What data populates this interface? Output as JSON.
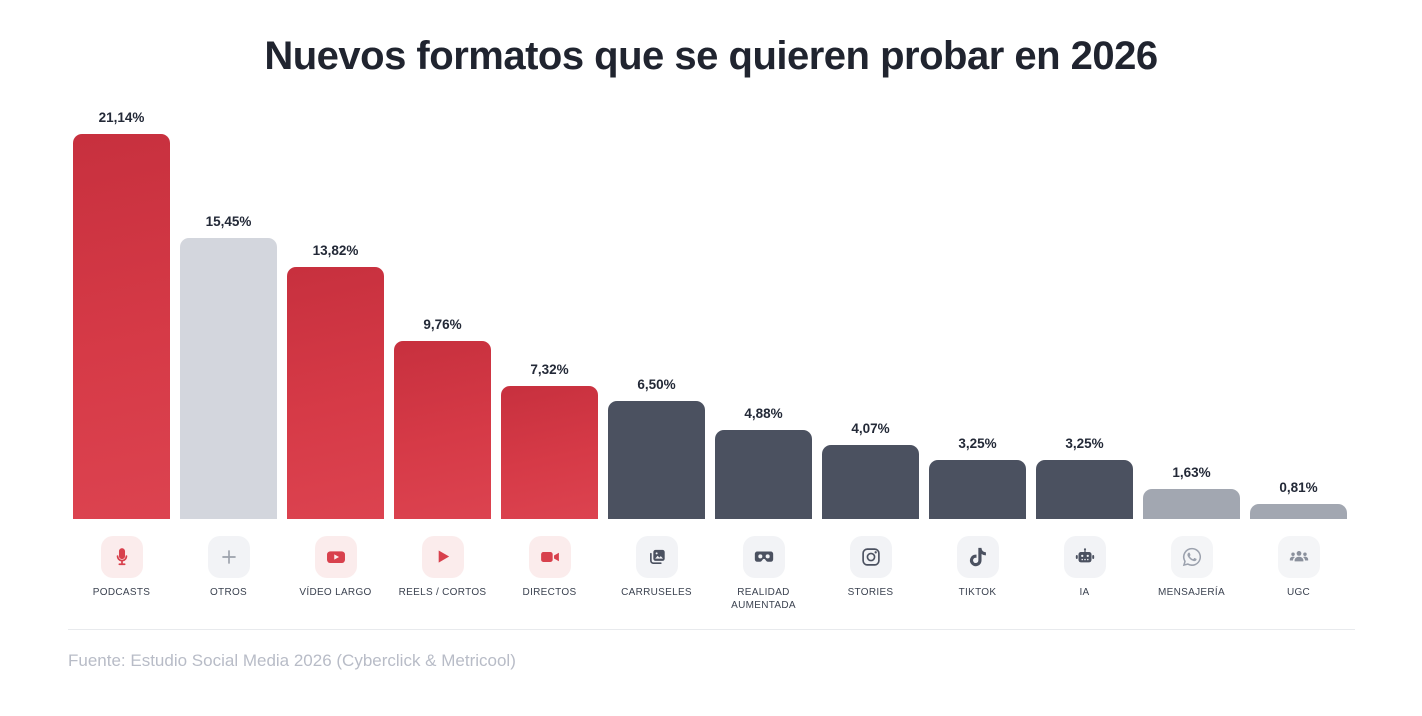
{
  "title": "Nuevos formatos que se quieren probar en 2026",
  "source": "Fuente: Estudio Social Media 2026 (Cyberclick & Metricool)",
  "palette": {
    "red_bar": "#D63A47",
    "dark_bar": "#4B5160",
    "light_gray_bar": "#D3D6DD",
    "medium_gray_bar": "#A2A7B1",
    "icon_bg_red": "#FBECEC",
    "icon_bg_gray": "#F2F3F6",
    "icon_red": "#D8414D",
    "icon_dark": "#4B5160",
    "title_color": "#20242F",
    "value_color": "#232937",
    "label_color": "#3B4250",
    "source_color": "#B8BCC7"
  },
  "chart_data": {
    "type": "bar",
    "title": "Nuevos formatos que se quieren probar en 2026",
    "xlabel": "",
    "ylabel": "",
    "unit": "%",
    "ylim": [
      0,
      22
    ],
    "grid": false,
    "legend": false,
    "decimal_separator": ",",
    "categories": [
      "PODCASTS",
      "OTROS",
      "VÍDEO LARGO",
      "REELS / CORTOS",
      "DIRECTOS",
      "CARRUSELES",
      "REALIDAD AUMENTADA",
      "STORIES",
      "TIKTOK",
      "IA",
      "MENSAJERÍA",
      "UGC"
    ],
    "values": [
      21.14,
      15.45,
      13.82,
      9.76,
      7.32,
      6.5,
      4.88,
      4.07,
      3.25,
      3.25,
      1.63,
      0.81
    ],
    "bars": [
      {
        "label": "PODCASTS",
        "value": 21.14,
        "value_label": "21,14%",
        "icon": "microphone-icon",
        "color_key": "red",
        "icon_style": "red"
      },
      {
        "label": "OTROS",
        "value": 15.45,
        "value_label": "15,45%",
        "icon": "plus-icon",
        "color_key": "light",
        "icon_style": "muted"
      },
      {
        "label": "VÍDEO LARGO",
        "value": 13.82,
        "value_label": "13,82%",
        "icon": "youtube-icon",
        "color_key": "red",
        "icon_style": "red"
      },
      {
        "label": "REELS / CORTOS",
        "value": 9.76,
        "value_label": "9,76%",
        "icon": "play-icon",
        "color_key": "red",
        "icon_style": "red"
      },
      {
        "label": "DIRECTOS",
        "value": 7.32,
        "value_label": "7,32%",
        "icon": "video-camera-icon",
        "color_key": "red",
        "icon_style": "red"
      },
      {
        "label": "CARRUSELES",
        "value": 6.5,
        "value_label": "6,50%",
        "icon": "carousel-icon",
        "color_key": "dark",
        "icon_style": "dark"
      },
      {
        "label": "REALIDAD AUMENTADA",
        "value": 4.88,
        "value_label": "4,88%",
        "icon": "vr-goggles-icon",
        "color_key": "dark",
        "icon_style": "dark"
      },
      {
        "label": "STORIES",
        "value": 4.07,
        "value_label": "4,07%",
        "icon": "instagram-icon",
        "color_key": "dark",
        "icon_style": "dark"
      },
      {
        "label": "TIKTOK",
        "value": 3.25,
        "value_label": "3,25%",
        "icon": "tiktok-icon",
        "color_key": "dark",
        "icon_style": "dark"
      },
      {
        "label": "IA",
        "value": 3.25,
        "value_label": "3,25%",
        "icon": "robot-icon",
        "color_key": "dark",
        "icon_style": "dark"
      },
      {
        "label": "MENSAJERÍA",
        "value": 1.63,
        "value_label": "1,63%",
        "icon": "whatsapp-icon",
        "color_key": "medium",
        "icon_style": "light"
      },
      {
        "label": "UGC",
        "value": 0.81,
        "value_label": "0,81%",
        "icon": "users-icon",
        "color_key": "medium",
        "icon_style": "medium"
      }
    ]
  }
}
